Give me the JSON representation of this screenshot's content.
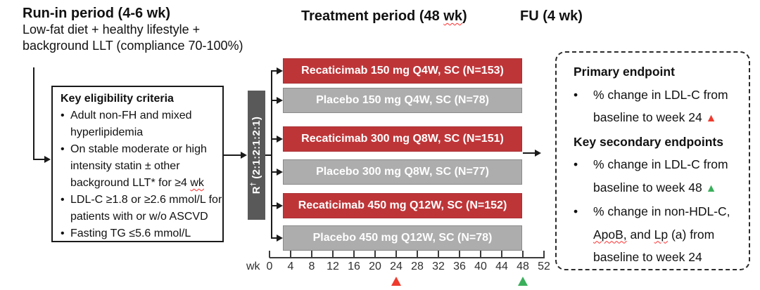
{
  "headers": {
    "run_in_title": "Run-in period (4-6 wk)",
    "run_in_line1": "Low-fat diet + healthy lifestyle +",
    "run_in_line2": "background LLT (compliance 70-100%)",
    "treatment_pre": "Treatment period (48 ",
    "treatment_wavy": "wk",
    "treatment_post": ")",
    "fu": "FU (4 wk)"
  },
  "bullet": "•",
  "eligibility": {
    "title": "Key eligibility criteria",
    "b1l1": "Adult non-FH and mixed",
    "b1l2": "hyperlipidemia",
    "b2l1": "On stable moderate or high",
    "b2l2": "intensity statin ± other",
    "b2l3_pre": "background LLT* for ≥4 ",
    "b2l3_wavy": "wk",
    "b3l1": "LDL-C ≥1.8 or ≥2.6 mmol/L for",
    "b3l2": "patients with or w/o ASCVD",
    "b4l1": "Fasting TG ≤5.6 mmol/L"
  },
  "randomization": {
    "r": "R",
    "dagger": "†",
    "ratio": " (2:1:2:1:2:1)"
  },
  "arms": [
    {
      "label": "Recaticimab 150 mg Q4W, SC (N=153)",
      "type": "drug"
    },
    {
      "label": "Placebo 150 mg Q4W, SC (N=78)",
      "type": "placebo"
    },
    {
      "label": "Recaticimab 300 mg Q8W, SC (N=151)",
      "type": "drug"
    },
    {
      "label": "Placebo 300 mg Q8W, SC (N=77)",
      "type": "placebo"
    },
    {
      "label": "Recaticimab 450 mg Q12W, SC (N=152)",
      "type": "drug"
    },
    {
      "label": "Placebo 450 mg Q12W, SC (N=78)",
      "type": "placebo"
    }
  ],
  "axis": {
    "label": "wk",
    "ticks": [
      "0",
      "4",
      "8",
      "12",
      "16",
      "20",
      "24",
      "28",
      "32",
      "36",
      "40",
      "44",
      "48",
      "52"
    ],
    "tick_spacing_weeks": 4,
    "marker_weeks": {
      "primary": "24",
      "secondary": "48"
    }
  },
  "endpoints": {
    "primary_title": "Primary endpoint",
    "primary_l1": "% change in LDL-C from",
    "primary_l2": "baseline to week 24 ",
    "primary_marker": "▲",
    "secondary_title": "Key secondary endpoints",
    "s1_l1": "% change in LDL-C from",
    "s1_l2": "baseline to week 48 ",
    "s1_marker": "▲",
    "s2_l1": "% change in non-HDL-C,",
    "s2_l2_w1": "ApoB,",
    "s2_l2_mid": " and ",
    "s2_l2_w2": "Lp",
    "s2_l2_end": " (a) from",
    "s2_l3": "baseline to week 24"
  },
  "colors": {
    "drug_bar": "#be3538",
    "placebo_bar": "#adadad",
    "randomization_box": "#595959",
    "primary_marker_red": "#ee3b2e",
    "secondary_marker_green": "#3aaf5b"
  }
}
